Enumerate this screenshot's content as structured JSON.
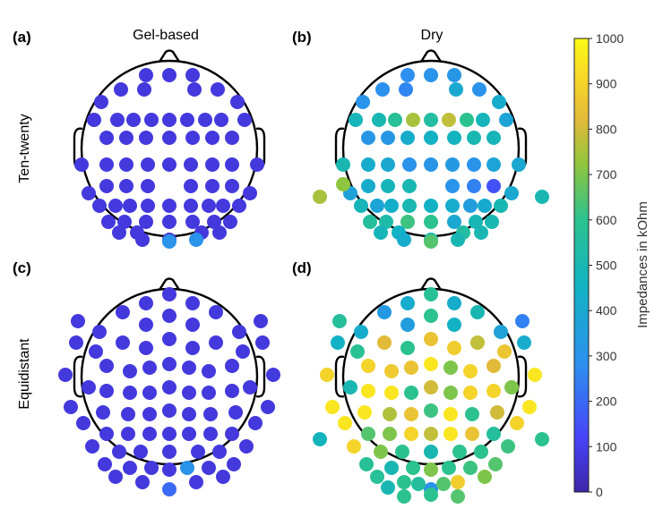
{
  "chart_data": {
    "type": "scatter",
    "description_units": "kOhm",
    "column_titles": [
      "Gel-based",
      "Dry"
    ],
    "row_titles": [
      "Ten-twenty",
      "Equidistant"
    ],
    "colorbar": {
      "label": "Impedances in kOhm",
      "min": 0,
      "max": 1000,
      "ticks": [
        "1000",
        "900",
        "800",
        "700",
        "600",
        "500",
        "400",
        "300",
        "200",
        "100",
        "0"
      ],
      "colormap": [
        "#3e26a8",
        "#4743f8",
        "#2d8fef",
        "#12b2c4",
        "#2bc28f",
        "#8fc63f",
        "#e2ba39",
        "#f9d927",
        "#f9fb15"
      ]
    },
    "panels": [
      {
        "label": "(a)",
        "layout": "ten-twenty",
        "values": [
          80,
          80,
          80,
          80,
          80,
          80,
          80,
          80,
          80,
          80,
          80,
          80,
          80,
          80,
          80,
          80,
          80,
          80,
          80,
          80,
          80,
          80,
          80,
          80,
          80,
          80,
          80,
          80,
          80,
          80,
          80,
          80,
          80,
          80,
          80,
          80,
          80,
          80,
          80,
          80,
          80,
          80,
          80,
          80,
          80,
          80,
          80,
          80,
          80,
          80,
          80,
          80,
          80,
          80,
          80,
          80,
          80,
          80,
          80,
          80,
          80,
          80,
          80,
          80,
          300,
          300
        ]
      },
      {
        "label": "(b)",
        "layout": "ten-twenty",
        "values": [
          280,
          300,
          320,
          290,
          260,
          400,
          300,
          300,
          420,
          480,
          500,
          580,
          750,
          550,
          780,
          600,
          480,
          380,
          320,
          320,
          420,
          450,
          460,
          500,
          480,
          500,
          420,
          400,
          300,
          310,
          330,
          300,
          380,
          400,
          420,
          480,
          500,
          300,
          250,
          150,
          370,
          400,
          480,
          380,
          430,
          500,
          450,
          420,
          350,
          410,
          500,
          560,
          530,
          620,
          600,
          400,
          490,
          500,
          480,
          450,
          550,
          500,
          420,
          500,
          500,
          650,
          750,
          500,
          720
        ]
      },
      {
        "label": "(c)",
        "layout": "equidistant",
        "values": [
          80,
          80,
          80,
          80,
          80,
          80,
          80,
          80,
          80,
          80,
          80,
          80,
          80,
          80,
          80,
          80,
          80,
          80,
          80,
          80,
          80,
          80,
          80,
          80,
          80,
          80,
          80,
          80,
          80,
          80,
          80,
          80,
          80,
          80,
          80,
          80,
          80,
          80,
          80,
          80,
          80,
          80,
          80,
          80,
          80,
          80,
          80,
          80,
          80,
          80,
          80,
          80,
          80,
          80,
          80,
          80,
          80,
          80,
          80,
          80,
          80,
          80,
          80,
          80,
          80,
          80,
          80,
          80,
          80,
          300,
          80,
          80,
          80,
          80,
          80,
          200
        ]
      },
      {
        "label": "(d)",
        "layout": "equidistant",
        "values": [
          580,
          420,
          420,
          330,
          570,
          250,
          500,
          420,
          370,
          600,
          350,
          450,
          450,
          420,
          590,
          860,
          820,
          780,
          850,
          600,
          880,
          900,
          950,
          900,
          820,
          870,
          900,
          950,
          850,
          700,
          500,
          700,
          950,
          900,
          950,
          900,
          800,
          600,
          700,
          950,
          950,
          950,
          800,
          760,
          600,
          620,
          850,
          950,
          950,
          900,
          650,
          560,
          700,
          850,
          780,
          900,
          950,
          900,
          620,
          700,
          600,
          600,
          600,
          500,
          580,
          650,
          500,
          620,
          600,
          600,
          700,
          580,
          700,
          600,
          880,
          300,
          470,
          600,
          600,
          650,
          600,
          560,
          650,
          500
        ]
      }
    ]
  }
}
